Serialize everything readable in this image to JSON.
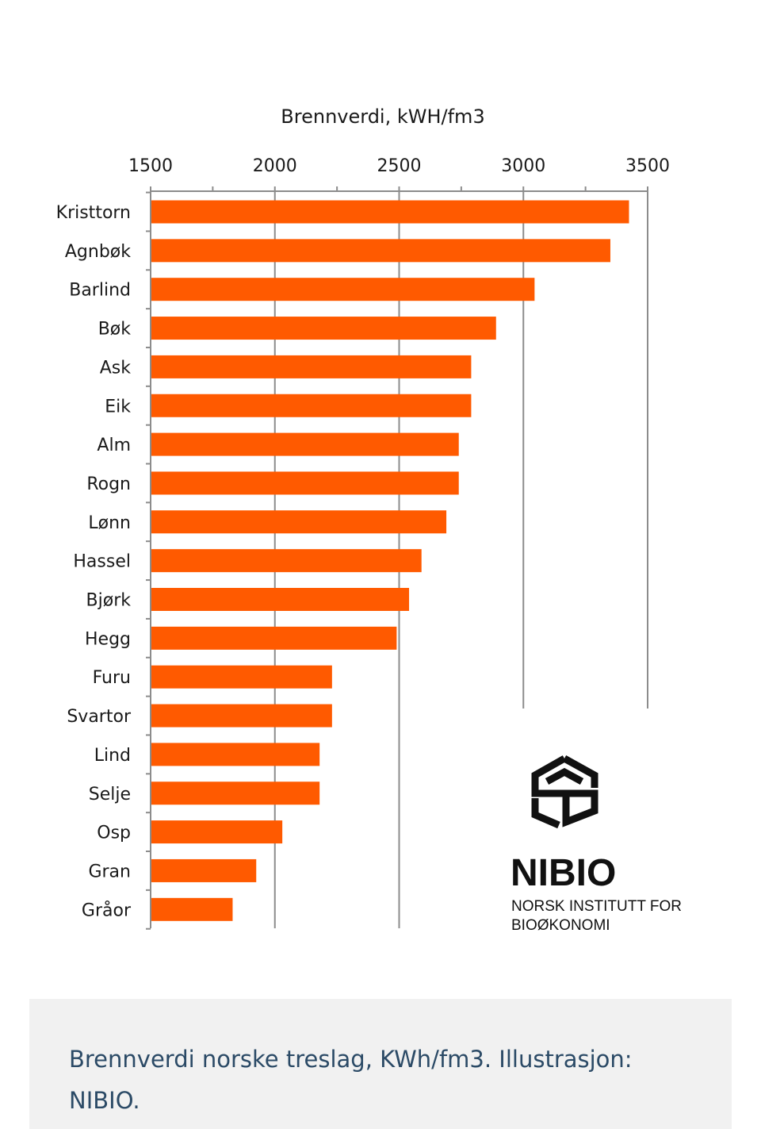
{
  "chart_data": {
    "type": "bar",
    "orientation": "horizontal",
    "title": "Brennverdi, kWH/fm3",
    "xlabel": "",
    "ylabel": "",
    "xlim": [
      1500,
      3500
    ],
    "x_ticks": [
      1500,
      2000,
      2500,
      3000,
      3500
    ],
    "x_axis_position": "top",
    "grid": true,
    "bar_color": "#ff5a00",
    "categories": [
      "Kristtorn",
      "Agnbøk",
      "Barlind",
      "Bøk",
      "Ask",
      "Eik",
      "Alm",
      "Rogn",
      "Lønn",
      "Hassel",
      "Bjørk",
      "Hegg",
      "Furu",
      "Svartor",
      "Lind",
      "Selje",
      "Osp",
      "Gran",
      "Gråor"
    ],
    "values": [
      3425,
      3350,
      3045,
      2890,
      2790,
      2790,
      2740,
      2740,
      2690,
      2590,
      2540,
      2490,
      2230,
      2230,
      2180,
      2180,
      2030,
      1925,
      1830
    ]
  },
  "logo": {
    "name": "NIBIO",
    "subtitle_line1": "NORSK INSTITUTT FOR",
    "subtitle_line2": "BIOØKONOMI",
    "icon": "nibio-logo-icon"
  },
  "caption": {
    "text": "Brennverdi norske treslag, KWh/fm3. Illustrasjon: NIBIO."
  }
}
